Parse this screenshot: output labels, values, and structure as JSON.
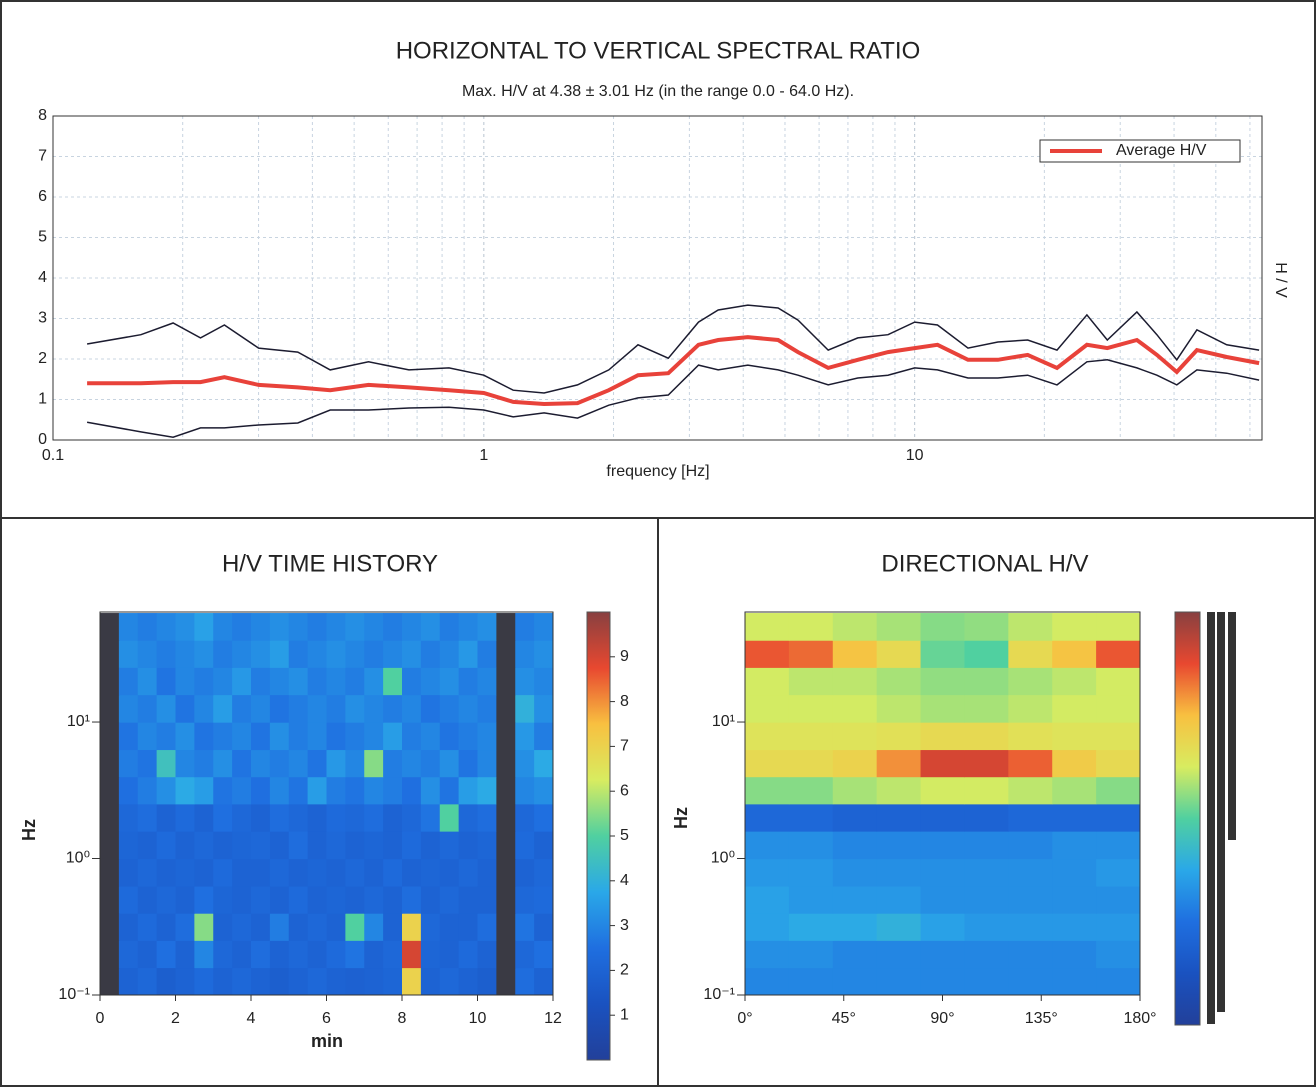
{
  "chart_data": [
    {
      "type": "line",
      "title": "HORIZONTAL TO VERTICAL SPECTRAL RATIO",
      "subtitle": "Max. H/V at 4.38 ± 3.01 Hz (in the range 0.0 - 64.0 Hz).",
      "xlabel": "frequency [Hz]",
      "ylabel": "H / V",
      "xlog": true,
      "xlim": [
        0.1,
        64
      ],
      "xticks": [
        0.1,
        1,
        10
      ],
      "xminorticks": [
        0.2,
        0.3,
        0.4,
        0.5,
        0.6,
        0.7,
        0.8,
        0.9,
        2,
        3,
        4,
        5,
        6,
        7,
        8,
        9,
        20,
        30,
        40,
        50,
        60
      ],
      "ylim": [
        0,
        8
      ],
      "yticks": [
        0,
        1,
        2,
        3,
        4,
        5,
        6,
        7,
        8
      ],
      "grid": true,
      "legend": "upper right",
      "x": [
        0.12,
        0.16,
        0.19,
        0.22,
        0.25,
        0.3,
        0.37,
        0.44,
        0.54,
        0.67,
        0.83,
        1.0,
        1.17,
        1.38,
        1.65,
        1.95,
        2.28,
        2.68,
        3.15,
        3.5,
        4.1,
        4.82,
        5.36,
        6.3,
        7.38,
        8.67,
        10,
        11.3,
        13.3,
        15.6,
        18.3,
        21.4,
        25.1,
        28,
        32.8,
        36.5,
        40.6,
        45.2,
        53,
        63
      ],
      "series": [
        {
          "color": "#1c1c30",
          "values": [
            2.37,
            2.6,
            2.89,
            2.52,
            2.84,
            2.27,
            2.17,
            1.73,
            1.93,
            1.73,
            1.78,
            1.6,
            1.23,
            1.16,
            1.36,
            1.73,
            2.35,
            2.02,
            2.91,
            3.21,
            3.33,
            3.26,
            2.96,
            2.22,
            2.52,
            2.6,
            2.91,
            2.84,
            2.27,
            2.42,
            2.47,
            2.22,
            3.09,
            2.47,
            3.16,
            2.6,
            1.98,
            2.72,
            2.35,
            2.22
          ]
        },
        {
          "color": "#1c1c30",
          "values": [
            0.44,
            0.2,
            0.07,
            0.3,
            0.3,
            0.37,
            0.42,
            0.74,
            0.74,
            0.79,
            0.81,
            0.74,
            0.57,
            0.67,
            0.54,
            0.86,
            1.04,
            1.11,
            1.85,
            1.73,
            1.85,
            1.73,
            1.6,
            1.36,
            1.53,
            1.6,
            1.78,
            1.73,
            1.53,
            1.53,
            1.6,
            1.36,
            1.93,
            1.98,
            1.78,
            1.6,
            1.36,
            1.73,
            1.65,
            1.48
          ]
        },
        {
          "name": "Average H/V",
          "color": "#e8423a",
          "values": [
            1.4,
            1.4,
            1.43,
            1.43,
            1.55,
            1.36,
            1.3,
            1.23,
            1.36,
            1.3,
            1.23,
            1.16,
            0.94,
            0.89,
            0.91,
            1.23,
            1.6,
            1.65,
            2.35,
            2.47,
            2.54,
            2.47,
            2.17,
            1.78,
            1.98,
            2.17,
            2.27,
            2.35,
            1.98,
            1.98,
            2.1,
            1.78,
            2.35,
            2.27,
            2.47,
            2.1,
            1.68,
            2.22,
            2.05,
            1.9
          ]
        }
      ]
    },
    {
      "type": "heatmap",
      "title": "H/V TIME HISTORY",
      "xlabel": "min",
      "ylabel": "Hz",
      "xlim": [
        0,
        12
      ],
      "xticks": [
        0,
        2,
        4,
        6,
        8,
        10,
        12
      ],
      "ylog": true,
      "ylim": [
        0.1,
        64
      ],
      "yticks": [
        {
          "value": 0.1,
          "label": "10⁻¹"
        },
        {
          "value": 1,
          "label": "10⁰"
        },
        {
          "value": 10,
          "label": "10¹"
        }
      ],
      "zlim": [
        0,
        10
      ],
      "zticks": [
        1,
        2,
        3,
        4,
        5,
        6,
        7,
        8,
        9
      ],
      "colorscale": [
        "#22409a",
        "#1a52c0",
        "#1f6fe0",
        "#2aa8e8",
        "#50d0a0",
        "#d8ec60",
        "#f8c040",
        "#e84830",
        "#884040"
      ],
      "null_color": "#3a3a44",
      "x": [
        0.25,
        0.75,
        1.25,
        1.75,
        2.25,
        2.75,
        3.25,
        3.75,
        4.25,
        4.75,
        5.25,
        5.75,
        6.25,
        6.75,
        7.25,
        7.75,
        8.25,
        8.75,
        9.25,
        9.75,
        10.25,
        10.75,
        11.25,
        11.75
      ],
      "y": [
        0.126,
        0.2,
        0.316,
        0.5,
        0.79,
        1.26,
        2,
        3.16,
        5,
        7.9,
        12.6,
        20,
        31.6,
        50
      ],
      "z": [
        [
          null,
          2.0,
          2.2,
          1.8,
          2.0,
          2.3,
          2.0,
          2.2,
          2.0,
          1.8,
          2.0,
          2.2,
          2.0,
          1.9,
          2.0,
          2.1,
          7.0,
          2.0,
          2.2,
          2.0,
          1.8,
          null,
          2.4,
          2.0
        ],
        [
          null,
          2.2,
          2.0,
          2.5,
          2.0,
          3.0,
          2.2,
          2.0,
          2.4,
          2.0,
          2.2,
          2.0,
          2.3,
          2.6,
          2.0,
          2.2,
          9.0,
          2.1,
          2.0,
          2.3,
          2.0,
          null,
          2.2,
          2.5
        ],
        [
          null,
          2.0,
          2.3,
          2.0,
          2.4,
          5.5,
          2.0,
          2.2,
          2.0,
          2.8,
          2.0,
          2.2,
          2.0,
          5.0,
          3.0,
          2.0,
          7.0,
          2.2,
          2.0,
          2.0,
          2.4,
          null,
          2.6,
          2.0
        ],
        [
          null,
          2.3,
          2.0,
          2.2,
          2.0,
          2.5,
          2.1,
          2.0,
          2.2,
          2.0,
          2.3,
          2.0,
          2.1,
          2.0,
          2.2,
          2.0,
          2.4,
          2.0,
          2.2,
          2.0,
          2.0,
          null,
          2.2,
          2.3
        ],
        [
          null,
          2.0,
          2.2,
          2.0,
          2.1,
          2.0,
          2.3,
          2.0,
          2.0,
          2.2,
          2.0,
          2.1,
          2.0,
          2.2,
          2.0,
          2.3,
          2.0,
          2.1,
          2.0,
          2.2,
          2.0,
          null,
          2.0,
          2.2
        ],
        [
          null,
          2.1,
          2.0,
          2.3,
          2.0,
          2.2,
          2.0,
          2.1,
          2.2,
          2.0,
          2.4,
          2.0,
          2.2,
          2.0,
          2.1,
          2.0,
          2.3,
          2.0,
          2.2,
          2.0,
          2.1,
          null,
          2.3,
          2.0
        ],
        [
          null,
          2.2,
          2.4,
          2.0,
          2.3,
          2.0,
          2.5,
          2.2,
          2.0,
          2.4,
          2.2,
          2.0,
          2.3,
          2.2,
          2.4,
          2.0,
          2.2,
          2.6,
          5.0,
          2.2,
          2.4,
          null,
          2.2,
          2.5
        ],
        [
          null,
          2.5,
          2.8,
          3.2,
          3.8,
          3.5,
          2.6,
          2.8,
          2.5,
          3.0,
          2.6,
          3.5,
          2.8,
          2.6,
          3.0,
          2.8,
          2.5,
          3.2,
          2.6,
          3.5,
          3.8,
          null,
          3.0,
          3.2
        ],
        [
          null,
          2.8,
          2.6,
          4.5,
          3.0,
          2.8,
          3.2,
          2.6,
          3.0,
          2.8,
          3.0,
          2.6,
          3.4,
          3.0,
          5.5,
          2.8,
          3.0,
          2.8,
          3.2,
          2.6,
          3.0,
          null,
          3.2,
          3.8
        ],
        [
          null,
          2.6,
          3.0,
          2.8,
          3.2,
          2.6,
          2.8,
          3.0,
          2.6,
          3.2,
          2.8,
          3.0,
          2.6,
          2.8,
          3.0,
          3.5,
          2.8,
          3.0,
          2.6,
          2.8,
          3.0,
          null,
          3.4,
          2.8
        ],
        [
          null,
          3.0,
          2.8,
          3.2,
          2.6,
          3.0,
          3.5,
          2.8,
          3.0,
          2.6,
          2.8,
          3.0,
          2.8,
          3.2,
          3.0,
          2.8,
          3.0,
          2.6,
          2.8,
          3.0,
          2.8,
          null,
          4.0,
          3.2
        ],
        [
          null,
          2.8,
          3.2,
          2.6,
          3.0,
          2.8,
          3.0,
          3.4,
          2.8,
          3.0,
          3.2,
          2.8,
          3.0,
          2.8,
          3.2,
          5.0,
          2.8,
          3.0,
          3.2,
          2.8,
          3.0,
          null,
          3.2,
          3.0
        ],
        [
          null,
          3.2,
          3.0,
          2.8,
          3.0,
          3.2,
          2.8,
          3.0,
          3.2,
          3.5,
          2.8,
          3.0,
          3.2,
          3.0,
          2.8,
          3.0,
          3.2,
          2.8,
          3.0,
          3.4,
          2.8,
          null,
          3.0,
          3.2
        ],
        [
          null,
          3.0,
          2.8,
          3.0,
          3.2,
          3.6,
          3.0,
          2.8,
          3.0,
          3.2,
          3.0,
          2.8,
          3.0,
          3.2,
          3.0,
          2.8,
          3.0,
          3.2,
          2.8,
          3.0,
          3.2,
          null,
          2.8,
          3.0
        ]
      ]
    },
    {
      "type": "heatmap",
      "title": "DIRECTIONAL H/V",
      "ylabel": "Hz",
      "xlim": [
        0,
        180
      ],
      "xticks": [
        {
          "value": 0,
          "label": "0°"
        },
        {
          "value": 45,
          "label": "45°"
        },
        {
          "value": 90,
          "label": "90°"
        },
        {
          "value": 135,
          "label": "135°"
        },
        {
          "value": 180,
          "label": "180°"
        }
      ],
      "ylog": true,
      "ylim": [
        0.1,
        64
      ],
      "yticks": [
        {
          "value": 0.1,
          "label": "10⁻¹"
        },
        {
          "value": 1,
          "label": "10⁰"
        },
        {
          "value": 10,
          "label": "10¹"
        }
      ],
      "zlim": [
        0,
        10
      ],
      "colorscale": [
        "#22409a",
        "#1a52c0",
        "#1f6fe0",
        "#2aa8e8",
        "#50d0a0",
        "#d8ec60",
        "#f8c040",
        "#e84830",
        "#884040"
      ],
      "x": [
        10,
        30,
        50,
        70,
        90,
        110,
        130,
        150,
        170
      ],
      "y": [
        0.126,
        0.2,
        0.316,
        0.5,
        0.79,
        1.26,
        2,
        3.16,
        5,
        7.9,
        12.6,
        20,
        31.6,
        50
      ],
      "z": [
        [
          3.0,
          3.0,
          3.0,
          3.0,
          3.0,
          3.0,
          3.0,
          3.0,
          3.0
        ],
        [
          3.2,
          3.2,
          3.0,
          3.0,
          3.0,
          3.0,
          3.0,
          3.0,
          3.2
        ],
        [
          3.6,
          3.8,
          3.8,
          4.0,
          3.6,
          3.4,
          3.4,
          3.4,
          3.4
        ],
        [
          3.6,
          3.4,
          3.4,
          3.4,
          3.2,
          3.2,
          3.2,
          3.2,
          3.2
        ],
        [
          3.4,
          3.4,
          3.2,
          3.2,
          3.2,
          3.2,
          3.2,
          3.2,
          3.4
        ],
        [
          3.2,
          3.2,
          3.0,
          3.0,
          3.0,
          3.0,
          3.0,
          3.2,
          3.2
        ],
        [
          2.2,
          2.2,
          2.0,
          2.0,
          2.0,
          2.0,
          2.2,
          2.2,
          2.2
        ],
        [
          5.5,
          5.5,
          5.8,
          6.0,
          6.2,
          6.2,
          6.0,
          5.8,
          5.5
        ],
        [
          6.8,
          6.8,
          7.0,
          8.0,
          9.0,
          9.0,
          8.5,
          7.2,
          6.8
        ],
        [
          6.5,
          6.5,
          6.5,
          6.6,
          6.8,
          6.8,
          6.6,
          6.5,
          6.5
        ],
        [
          6.2,
          6.2,
          6.2,
          6.0,
          5.8,
          5.8,
          6.0,
          6.2,
          6.2
        ],
        [
          6.2,
          6.0,
          6.0,
          5.8,
          5.6,
          5.6,
          5.8,
          6.0,
          6.2
        ],
        [
          8.6,
          8.4,
          7.4,
          6.8,
          5.2,
          5.0,
          6.8,
          7.4,
          8.6
        ],
        [
          6.2,
          6.2,
          6.0,
          5.8,
          5.5,
          5.6,
          6.0,
          6.2,
          6.2
        ]
      ]
    }
  ]
}
